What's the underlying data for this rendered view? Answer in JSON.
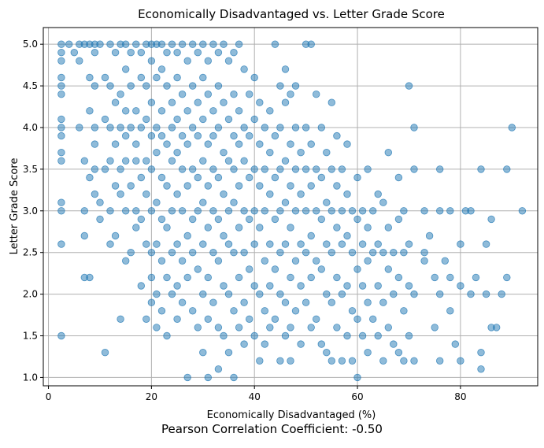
{
  "chart_data": {
    "type": "scatter",
    "title": "Economically Disadvantaged vs. Letter Grade Score",
    "xlabel": "Economically Disadvantaged (%)",
    "ylabel": "Letter Grade Score",
    "xlim": [
      -1,
      95
    ],
    "ylim": [
      0.9,
      5.2
    ],
    "xticks": [
      0,
      20,
      40,
      60,
      80
    ],
    "xtick_labels": [
      "0",
      "20",
      "40",
      "60",
      "80"
    ],
    "yticks": [
      1.0,
      1.5,
      2.0,
      2.5,
      3.0,
      3.5,
      4.0,
      4.5,
      5.0
    ],
    "ytick_labels": [
      "1.0",
      "1.5",
      "2.0",
      "2.5",
      "3.0",
      "3.5",
      "4.0",
      "4.5",
      "5.0"
    ],
    "grid": true,
    "point_color": "#1f77b4",
    "point_alpha": 0.5,
    "points": [
      [
        2.5,
        5.0
      ],
      [
        2.5,
        4.9
      ],
      [
        2.5,
        4.8
      ],
      [
        2.5,
        4.6
      ],
      [
        2.5,
        4.5
      ],
      [
        2.5,
        4.4
      ],
      [
        2.5,
        4.1
      ],
      [
        2.5,
        4.0
      ],
      [
        2.5,
        3.9
      ],
      [
        2.5,
        3.7
      ],
      [
        2.5,
        3.6
      ],
      [
        2.5,
        3.1
      ],
      [
        2.5,
        3.0
      ],
      [
        2.5,
        2.6
      ],
      [
        2.5,
        1.5
      ],
      [
        4,
        5.0
      ],
      [
        5,
        4.9
      ],
      [
        6,
        5.0
      ],
      [
        6,
        4.8
      ],
      [
        6,
        4.0
      ],
      [
        7,
        5.0
      ],
      [
        7,
        3.6
      ],
      [
        7,
        3.0
      ],
      [
        7,
        2.7
      ],
      [
        7,
        2.2
      ],
      [
        8,
        5.0
      ],
      [
        8,
        4.6
      ],
      [
        8,
        4.2
      ],
      [
        8,
        3.4
      ],
      [
        8,
        2.2
      ],
      [
        9,
        5.0
      ],
      [
        9,
        4.9
      ],
      [
        9,
        4.5
      ],
      [
        9,
        4.0
      ],
      [
        9,
        3.8
      ],
      [
        9,
        3.5
      ],
      [
        9,
        3.2
      ],
      [
        10,
        5.0
      ],
      [
        10,
        3.1
      ],
      [
        10,
        2.9
      ],
      [
        11,
        4.6
      ],
      [
        11,
        4.1
      ],
      [
        11,
        3.5
      ],
      [
        11,
        1.3
      ],
      [
        12,
        5.0
      ],
      [
        12,
        4.5
      ],
      [
        12,
        4.0
      ],
      [
        12,
        3.6
      ],
      [
        12,
        3.0
      ],
      [
        12,
        2.6
      ],
      [
        13,
        4.9
      ],
      [
        13,
        4.3
      ],
      [
        13,
        3.8
      ],
      [
        13,
        3.3
      ],
      [
        13,
        2.7
      ],
      [
        14,
        5.0
      ],
      [
        14,
        4.4
      ],
      [
        14,
        4.0
      ],
      [
        14,
        3.5
      ],
      [
        14,
        3.2
      ],
      [
        14,
        1.7
      ],
      [
        15,
        5.0
      ],
      [
        15,
        4.7
      ],
      [
        15,
        4.2
      ],
      [
        15,
        3.9
      ],
      [
        15,
        3.6
      ],
      [
        15,
        3.0
      ],
      [
        15,
        2.4
      ],
      [
        16,
        4.9
      ],
      [
        16,
        4.5
      ],
      [
        16,
        4.0
      ],
      [
        16,
        3.3
      ],
      [
        16,
        2.5
      ],
      [
        17,
        5.0
      ],
      [
        17,
        4.2
      ],
      [
        17,
        3.8
      ],
      [
        17,
        3.6
      ],
      [
        17,
        3.0
      ],
      [
        17,
        2.8
      ],
      [
        18,
        4.9
      ],
      [
        18,
        4.6
      ],
      [
        18,
        4.0
      ],
      [
        18,
        3.4
      ],
      [
        18,
        2.9
      ],
      [
        18,
        2.1
      ],
      [
        19,
        5.0
      ],
      [
        19,
        4.5
      ],
      [
        19,
        4.1
      ],
      [
        19,
        3.6
      ],
      [
        19,
        3.2
      ],
      [
        19,
        2.6
      ],
      [
        19,
        1.7
      ],
      [
        20,
        5.0
      ],
      [
        20,
        4.8
      ],
      [
        20,
        4.3
      ],
      [
        20,
        3.9
      ],
      [
        20,
        3.5
      ],
      [
        20,
        3.0
      ],
      [
        20,
        2.5
      ],
      [
        20,
        2.2
      ],
      [
        20,
        1.9
      ],
      [
        21,
        5.0
      ],
      [
        21,
        4.6
      ],
      [
        21,
        4.0
      ],
      [
        21,
        3.7
      ],
      [
        21,
        3.1
      ],
      [
        21,
        2.6
      ],
      [
        21,
        2.0
      ],
      [
        21,
        1.6
      ],
      [
        22,
        5.0
      ],
      [
        22,
        4.7
      ],
      [
        22,
        4.2
      ],
      [
        22,
        3.9
      ],
      [
        22,
        3.4
      ],
      [
        22,
        2.9
      ],
      [
        22,
        2.4
      ],
      [
        22,
        1.8
      ],
      [
        23,
        4.9
      ],
      [
        23,
        4.5
      ],
      [
        23,
        3.8
      ],
      [
        23,
        3.3
      ],
      [
        23,
        2.8
      ],
      [
        23,
        2.2
      ],
      [
        23,
        1.5
      ],
      [
        24,
        5.0
      ],
      [
        24,
        4.3
      ],
      [
        24,
        4.0
      ],
      [
        24,
        3.6
      ],
      [
        24,
        3.0
      ],
      [
        24,
        2.5
      ],
      [
        24,
        2.0
      ],
      [
        25,
        4.9
      ],
      [
        25,
        4.6
      ],
      [
        25,
        4.1
      ],
      [
        25,
        3.7
      ],
      [
        25,
        3.2
      ],
      [
        25,
        2.6
      ],
      [
        25,
        2.1
      ],
      [
        25,
        1.7
      ],
      [
        26,
        5.0
      ],
      [
        26,
        4.4
      ],
      [
        26,
        3.9
      ],
      [
        26,
        3.5
      ],
      [
        26,
        3.0
      ],
      [
        26,
        2.4
      ],
      [
        26,
        1.9
      ],
      [
        27,
        4.8
      ],
      [
        27,
        4.2
      ],
      [
        27,
        3.8
      ],
      [
        27,
        3.3
      ],
      [
        27,
        2.7
      ],
      [
        27,
        2.2
      ],
      [
        27,
        1.0
      ],
      [
        28,
        5.0
      ],
      [
        28,
        4.5
      ],
      [
        28,
        4.0
      ],
      [
        28,
        3.5
      ],
      [
        28,
        2.9
      ],
      [
        28,
        2.5
      ],
      [
        28,
        1.8
      ],
      [
        29,
        4.9
      ],
      [
        29,
        4.3
      ],
      [
        29,
        3.9
      ],
      [
        29,
        3.4
      ],
      [
        29,
        3.0
      ],
      [
        29,
        2.3
      ],
      [
        29,
        1.6
      ],
      [
        30,
        5.0
      ],
      [
        30,
        4.6
      ],
      [
        30,
        4.1
      ],
      [
        30,
        3.6
      ],
      [
        30,
        3.1
      ],
      [
        30,
        2.6
      ],
      [
        30,
        2.0
      ],
      [
        30,
        1.3
      ],
      [
        31,
        4.8
      ],
      [
        31,
        4.4
      ],
      [
        31,
        3.8
      ],
      [
        31,
        3.3
      ],
      [
        31,
        2.8
      ],
      [
        31,
        2.2
      ],
      [
        31,
        1.7
      ],
      [
        31,
        1.0
      ],
      [
        32,
        5.0
      ],
      [
        32,
        4.2
      ],
      [
        32,
        3.9
      ],
      [
        32,
        3.5
      ],
      [
        32,
        3.0
      ],
      [
        32,
        2.5
      ],
      [
        32,
        1.9
      ],
      [
        33,
        4.9
      ],
      [
        33,
        4.5
      ],
      [
        33,
        4.0
      ],
      [
        33,
        3.4
      ],
      [
        33,
        2.9
      ],
      [
        33,
        2.4
      ],
      [
        33,
        1.6
      ],
      [
        33,
        1.1
      ],
      [
        34,
        5.0
      ],
      [
        34,
        4.3
      ],
      [
        34,
        3.7
      ],
      [
        34,
        3.2
      ],
      [
        34,
        2.7
      ],
      [
        34,
        2.1
      ],
      [
        34,
        1.5
      ],
      [
        35,
        4.8
      ],
      [
        35,
        4.1
      ],
      [
        35,
        3.6
      ],
      [
        35,
        3.0
      ],
      [
        35,
        2.6
      ],
      [
        35,
        2.0
      ],
      [
        35,
        1.3
      ],
      [
        36,
        4.9
      ],
      [
        36,
        4.4
      ],
      [
        36,
        3.9
      ],
      [
        36,
        3.5
      ],
      [
        36,
        3.1
      ],
      [
        36,
        2.5
      ],
      [
        36,
        1.8
      ],
      [
        36,
        1.0
      ],
      [
        37,
        5.0
      ],
      [
        37,
        4.2
      ],
      [
        37,
        3.8
      ],
      [
        37,
        3.3
      ],
      [
        37,
        2.8
      ],
      [
        37,
        2.2
      ],
      [
        37,
        1.6
      ],
      [
        38,
        4.7
      ],
      [
        38,
        4.0
      ],
      [
        38,
        3.6
      ],
      [
        38,
        3.0
      ],
      [
        38,
        2.5
      ],
      [
        38,
        1.9
      ],
      [
        38,
        1.4
      ],
      [
        39,
        4.4
      ],
      [
        39,
        3.9
      ],
      [
        39,
        3.4
      ],
      [
        39,
        2.9
      ],
      [
        39,
        2.3
      ],
      [
        39,
        1.7
      ],
      [
        40,
        4.6
      ],
      [
        40,
        4.1
      ],
      [
        40,
        3.5
      ],
      [
        40,
        3.0
      ],
      [
        40,
        2.6
      ],
      [
        40,
        2.1
      ],
      [
        40,
        1.5
      ],
      [
        41,
        4.3
      ],
      [
        41,
        3.8
      ],
      [
        41,
        3.3
      ],
      [
        41,
        2.8
      ],
      [
        41,
        2.0
      ],
      [
        41,
        1.2
      ],
      [
        42,
        4.0
      ],
      [
        42,
        3.5
      ],
      [
        42,
        3.0
      ],
      [
        42,
        2.4
      ],
      [
        42,
        1.8
      ],
      [
        42,
        1.4
      ],
      [
        43,
        4.2
      ],
      [
        43,
        3.7
      ],
      [
        43,
        3.2
      ],
      [
        43,
        2.6
      ],
      [
        43,
        2.1
      ],
      [
        43,
        1.6
      ],
      [
        44,
        5.0
      ],
      [
        44,
        3.9
      ],
      [
        44,
        3.4
      ],
      [
        44,
        2.9
      ],
      [
        44,
        2.3
      ],
      [
        44,
        1.7
      ],
      [
        45,
        4.5
      ],
      [
        45,
        4.0
      ],
      [
        45,
        3.5
      ],
      [
        45,
        3.0
      ],
      [
        45,
        2.5
      ],
      [
        45,
        2.0
      ],
      [
        45,
        1.2
      ],
      [
        46,
        4.7
      ],
      [
        46,
        4.3
      ],
      [
        46,
        3.6
      ],
      [
        46,
        3.1
      ],
      [
        46,
        2.6
      ],
      [
        46,
        1.9
      ],
      [
        46,
        1.5
      ],
      [
        47,
        4.4
      ],
      [
        47,
        3.8
      ],
      [
        47,
        3.3
      ],
      [
        47,
        2.8
      ],
      [
        47,
        2.2
      ],
      [
        47,
        1.6
      ],
      [
        47,
        1.2
      ],
      [
        48,
        4.5
      ],
      [
        48,
        4.0
      ],
      [
        48,
        3.5
      ],
      [
        48,
        3.0
      ],
      [
        48,
        2.4
      ],
      [
        48,
        1.8
      ],
      [
        49,
        3.7
      ],
      [
        49,
        3.2
      ],
      [
        49,
        2.6
      ],
      [
        49,
        2.1
      ],
      [
        49,
        1.4
      ],
      [
        50,
        5.0
      ],
      [
        50,
        4.0
      ],
      [
        50,
        3.5
      ],
      [
        50,
        3.0
      ],
      [
        50,
        2.5
      ],
      [
        50,
        1.9
      ],
      [
        51,
        5.0
      ],
      [
        51,
        3.8
      ],
      [
        51,
        3.3
      ],
      [
        51,
        2.7
      ],
      [
        51,
        2.2
      ],
      [
        51,
        1.6
      ],
      [
        52,
        4.4
      ],
      [
        52,
        3.5
      ],
      [
        52,
        3.0
      ],
      [
        52,
        2.4
      ],
      [
        52,
        1.7
      ],
      [
        53,
        4.0
      ],
      [
        53,
        3.4
      ],
      [
        53,
        2.9
      ],
      [
        53,
        2.3
      ],
      [
        53,
        1.4
      ],
      [
        54,
        3.7
      ],
      [
        54,
        3.1
      ],
      [
        54,
        2.6
      ],
      [
        54,
        2.0
      ],
      [
        54,
        1.3
      ],
      [
        55,
        4.3
      ],
      [
        55,
        3.5
      ],
      [
        55,
        3.0
      ],
      [
        55,
        2.5
      ],
      [
        55,
        1.9
      ],
      [
        55,
        1.2
      ],
      [
        56,
        3.9
      ],
      [
        56,
        3.3
      ],
      [
        56,
        2.8
      ],
      [
        56,
        2.2
      ],
      [
        56,
        1.6
      ],
      [
        57,
        3.5
      ],
      [
        57,
        3.0
      ],
      [
        57,
        2.6
      ],
      [
        57,
        2.0
      ],
      [
        57,
        1.2
      ],
      [
        58,
        3.8
      ],
      [
        58,
        3.2
      ],
      [
        58,
        2.7
      ],
      [
        58,
        2.1
      ],
      [
        58,
        1.5
      ],
      [
        59,
        3.0
      ],
      [
        59,
        2.5
      ],
      [
        59,
        1.8
      ],
      [
        59,
        1.2
      ],
      [
        60,
        3.4
      ],
      [
        60,
        2.9
      ],
      [
        60,
        2.3
      ],
      [
        60,
        1.7
      ],
      [
        60,
        1.0
      ],
      [
        61,
        3.0
      ],
      [
        61,
        2.6
      ],
      [
        61,
        2.1
      ],
      [
        61,
        1.5
      ],
      [
        62,
        3.5
      ],
      [
        62,
        2.8
      ],
      [
        62,
        2.4
      ],
      [
        62,
        1.9
      ],
      [
        62,
        1.3
      ],
      [
        63,
        3.0
      ],
      [
        63,
        2.5
      ],
      [
        63,
        1.7
      ],
      [
        64,
        3.2
      ],
      [
        64,
        2.6
      ],
      [
        64,
        2.1
      ],
      [
        64,
        1.5
      ],
      [
        65,
        3.1
      ],
      [
        65,
        2.5
      ],
      [
        65,
        1.9
      ],
      [
        65,
        1.2
      ],
      [
        66,
        3.7
      ],
      [
        66,
        2.8
      ],
      [
        66,
        2.3
      ],
      [
        66,
        1.6
      ],
      [
        67,
        2.5
      ],
      [
        67,
        2.0
      ],
      [
        67,
        1.4
      ],
      [
        68,
        3.4
      ],
      [
        68,
        2.9
      ],
      [
        68,
        2.2
      ],
      [
        68,
        1.3
      ],
      [
        69,
        3.0
      ],
      [
        69,
        2.5
      ],
      [
        69,
        1.8
      ],
      [
        69,
        1.2
      ],
      [
        70,
        4.5
      ],
      [
        70,
        2.6
      ],
      [
        70,
        2.1
      ],
      [
        70,
        1.5
      ],
      [
        71,
        4.0
      ],
      [
        71,
        3.5
      ],
      [
        71,
        2.0
      ],
      [
        71,
        1.2
      ],
      [
        73,
        3.0
      ],
      [
        73,
        2.5
      ],
      [
        73,
        2.4
      ],
      [
        74,
        2.7
      ],
      [
        75,
        2.2
      ],
      [
        75,
        1.6
      ],
      [
        76,
        3.5
      ],
      [
        76,
        3.0
      ],
      [
        76,
        2.0
      ],
      [
        76,
        1.2
      ],
      [
        77,
        2.4
      ],
      [
        78,
        3.0
      ],
      [
        78,
        2.2
      ],
      [
        78,
        1.8
      ],
      [
        79,
        1.4
      ],
      [
        80,
        2.6
      ],
      [
        80,
        2.1
      ],
      [
        80,
        1.2
      ],
      [
        81,
        3.0
      ],
      [
        82,
        3.0
      ],
      [
        82,
        2.0
      ],
      [
        83,
        2.2
      ],
      [
        84,
        3.5
      ],
      [
        84,
        1.3
      ],
      [
        84,
        1.1
      ],
      [
        85,
        2.6
      ],
      [
        85,
        2.0
      ],
      [
        86,
        2.9
      ],
      [
        86,
        1.6
      ],
      [
        87,
        1.6
      ],
      [
        88,
        2.0
      ],
      [
        89,
        3.5
      ],
      [
        89,
        2.2
      ],
      [
        90,
        4.0
      ],
      [
        92,
        3.0
      ]
    ]
  },
  "footer_text": "Pearson Correlation Coefficient: -0.50"
}
